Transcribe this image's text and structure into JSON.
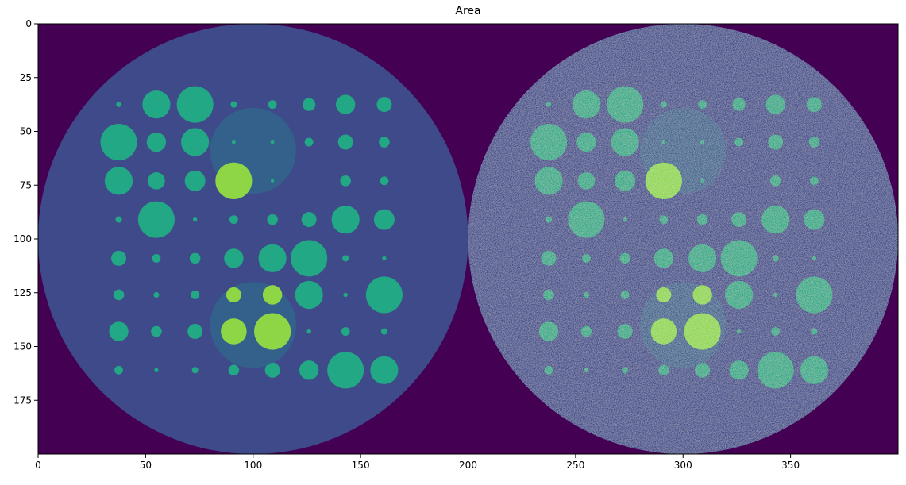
{
  "chart_data": {
    "type": "heatmap",
    "title": "Area",
    "xlabel": "",
    "ylabel": "",
    "xlim": [
      0,
      400
    ],
    "ylim": [
      200,
      0
    ],
    "x_ticks": [
      0,
      50,
      100,
      150,
      200,
      250,
      300,
      350
    ],
    "y_ticks": [
      0,
      25,
      50,
      75,
      100,
      125,
      150,
      175
    ],
    "grid": false,
    "colormap": "viridis",
    "colors": {
      "background": "#440154",
      "phantom": "#3e4a89",
      "overlay": "#2c728e",
      "disc": "#22a884",
      "bright": "#8ed645",
      "overlay_blend": "#2f8b8c"
    },
    "panels": [
      {
        "name": "",
        "center": [
          100,
          100
        ],
        "radius": 100,
        "noisy": false
      },
      {
        "name": "",
        "center": [
          300,
          100
        ],
        "radius": 100,
        "noisy": true
      }
    ],
    "overlays": [
      {
        "center": [
          100,
          59
        ],
        "radius": 20
      },
      {
        "center": [
          100,
          140
        ],
        "radius": 20
      }
    ],
    "grid_columns": [
      37.5,
      55,
      73,
      91,
      109,
      126,
      143,
      161
    ],
    "grid_rows": [
      37.5,
      55,
      73,
      91,
      109,
      126,
      143,
      161
    ],
    "disc_radii": [
      [
        1.2,
        6.5,
        8.5,
        1.5,
        2.0,
        3.0,
        4.5,
        3.5
      ],
      [
        8.5,
        4.5,
        6.5,
        0.9,
        0.9,
        2.0,
        3.5,
        2.5
      ],
      [
        6.5,
        4.0,
        4.8,
        8.5,
        0.8,
        0.0,
        2.5,
        2.0
      ],
      [
        1.5,
        8.5,
        1.0,
        2.0,
        2.5,
        3.5,
        6.5,
        4.8
      ],
      [
        3.5,
        2.0,
        2.5,
        4.5,
        6.5,
        8.5,
        1.5,
        1.0
      ],
      [
        2.5,
        1.3,
        2.0,
        3.5,
        4.5,
        6.5,
        1.0,
        8.5
      ],
      [
        4.5,
        2.5,
        3.5,
        6.0,
        8.5,
        1.0,
        2.0,
        1.5
      ],
      [
        2.0,
        1.0,
        1.5,
        2.5,
        3.5,
        4.5,
        8.5,
        6.5
      ]
    ]
  }
}
